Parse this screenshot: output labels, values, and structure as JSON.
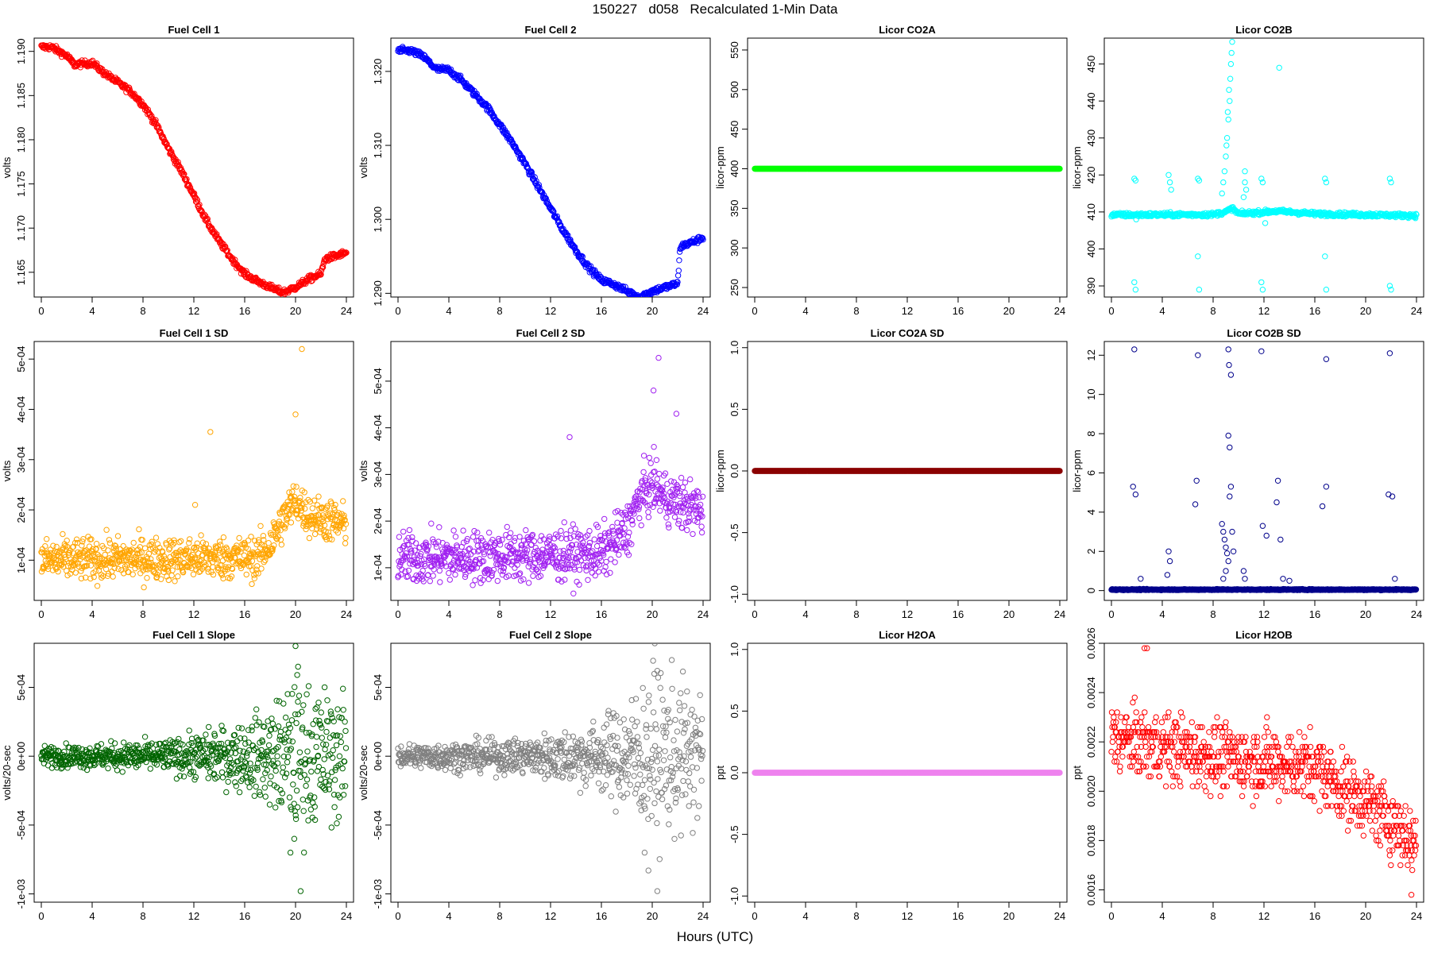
{
  "figure": {
    "title": "150227   d058   Recalculated 1-Min Data",
    "x_caption": "Hours (UTC)"
  },
  "chart_data": [
    {
      "id": "fc1",
      "type": "scatter",
      "title": "Fuel Cell 1",
      "ylabel": "volts",
      "color": "#ff0000",
      "xlim": [
        0,
        24
      ],
      "xticks": [
        0,
        4,
        8,
        12,
        16,
        20,
        24
      ],
      "ylim": [
        1.1622,
        1.1915
      ],
      "yticks": [
        1.165,
        1.17,
        1.175,
        1.18,
        1.185,
        1.19
      ],
      "yticklabels": [
        "1.165",
        "1.170",
        "1.175",
        "1.180",
        "1.185",
        "1.190"
      ],
      "trend": [
        [
          0,
          1.1905
        ],
        [
          0.8,
          1.1905
        ],
        [
          2,
          1.1895
        ],
        [
          2.6,
          1.1885
        ],
        [
          4,
          1.1887
        ],
        [
          5,
          1.1875
        ],
        [
          6,
          1.1865
        ],
        [
          7,
          1.1855
        ],
        [
          8,
          1.184
        ],
        [
          9,
          1.1818
        ],
        [
          10,
          1.179
        ],
        [
          11,
          1.1765
        ],
        [
          12,
          1.1737
        ],
        [
          13,
          1.1708
        ],
        [
          14,
          1.1685
        ],
        [
          15,
          1.1665
        ],
        [
          16,
          1.1648
        ],
        [
          17,
          1.164
        ],
        [
          18,
          1.1633
        ],
        [
          19,
          1.1627
        ],
        [
          20,
          1.1633
        ],
        [
          21,
          1.1642
        ],
        [
          22,
          1.1648
        ],
        [
          22.3,
          1.1665
        ],
        [
          24,
          1.1672
        ]
      ],
      "noise": 0.00025,
      "step": 0.04
    },
    {
      "id": "fc2",
      "type": "scatter",
      "title": "Fuel Cell 2",
      "ylabel": "volts",
      "color": "#0000ff",
      "xlim": [
        0,
        24
      ],
      "xticks": [
        0,
        4,
        8,
        12,
        16,
        20,
        24
      ],
      "ylim": [
        1.2895,
        1.3245
      ],
      "yticks": [
        1.29,
        1.3,
        1.31,
        1.32
      ],
      "yticklabels": [
        "1.290",
        "1.300",
        "1.310",
        "1.320"
      ],
      "trend": [
        [
          0,
          1.3228
        ],
        [
          1,
          1.3228
        ],
        [
          2,
          1.322
        ],
        [
          3,
          1.3203
        ],
        [
          4,
          1.3202
        ],
        [
          5,
          1.3188
        ],
        [
          6,
          1.317
        ],
        [
          7,
          1.3152
        ],
        [
          8,
          1.3128
        ],
        [
          9,
          1.3103
        ],
        [
          10,
          1.3075
        ],
        [
          11,
          1.3045
        ],
        [
          12,
          1.3015
        ],
        [
          13,
          1.2985
        ],
        [
          14,
          1.2958
        ],
        [
          15,
          1.2935
        ],
        [
          16,
          1.2918
        ],
        [
          17,
          1.2912
        ],
        [
          18,
          1.2903
        ],
        [
          19,
          1.2895
        ],
        [
          20,
          1.2903
        ],
        [
          21,
          1.2908
        ],
        [
          22,
          1.2913
        ],
        [
          22.2,
          1.2963
        ],
        [
          24,
          1.2975
        ]
      ],
      "noise": 0.0003,
      "step": 0.04
    },
    {
      "id": "co2a",
      "type": "scatter",
      "title": "Licor CO2A",
      "ylabel": "licor-ppm",
      "color": "#00ff00",
      "xlim": [
        0,
        24
      ],
      "xticks": [
        0,
        4,
        8,
        12,
        16,
        20,
        24
      ],
      "ylim": [
        238,
        565
      ],
      "yticks": [
        250,
        300,
        350,
        400,
        450,
        500,
        550
      ],
      "yticklabels": [
        "250",
        "300",
        "350",
        "400",
        "450",
        "500",
        "550"
      ],
      "trend": [
        [
          0,
          400
        ],
        [
          24,
          400
        ]
      ],
      "noise": 0,
      "step": 0.04
    },
    {
      "id": "co2b",
      "type": "scatter",
      "title": "Licor CO2B",
      "ylabel": "licor-ppm",
      "color": "#00ffff",
      "xlim": [
        0,
        24
      ],
      "xticks": [
        0,
        4,
        8,
        12,
        16,
        20,
        24
      ],
      "ylim": [
        387,
        457
      ],
      "yticks": [
        390,
        400,
        410,
        420,
        430,
        440,
        450
      ],
      "yticklabels": [
        "390",
        "400",
        "410",
        "420",
        "430",
        "440",
        "450"
      ],
      "trend": [
        [
          0,
          409.2
        ],
        [
          8,
          409.3
        ],
        [
          9,
          410
        ],
        [
          9.5,
          411
        ],
        [
          10,
          409.5
        ],
        [
          13,
          410.2
        ],
        [
          14,
          410
        ],
        [
          16,
          409.5
        ],
        [
          24,
          409
        ]
      ],
      "noise": 0.4,
      "step": 0.04,
      "extra_points": [
        [
          8.8,
          418
        ],
        [
          9.0,
          425
        ],
        [
          9.1,
          430
        ],
        [
          9.2,
          435
        ],
        [
          9.3,
          440
        ],
        [
          9.35,
          446
        ],
        [
          9.4,
          450
        ],
        [
          9.45,
          453
        ],
        [
          9.5,
          456
        ],
        [
          9.25,
          443
        ],
        [
          9.15,
          437
        ],
        [
          9.05,
          428
        ],
        [
          8.9,
          421
        ],
        [
          8.7,
          415
        ],
        [
          10.5,
          418
        ],
        [
          10.6,
          416
        ],
        [
          10.4,
          414
        ],
        [
          1.8,
          419
        ],
        [
          1.9,
          418.5
        ],
        [
          1.8,
          391
        ],
        [
          1.9,
          389
        ],
        [
          1.95,
          408
        ],
        [
          4.5,
          420
        ],
        [
          4.6,
          418
        ],
        [
          4.7,
          416
        ],
        [
          6.8,
          419
        ],
        [
          6.9,
          418.5
        ],
        [
          6.8,
          398
        ],
        [
          6.9,
          389
        ],
        [
          11.8,
          419
        ],
        [
          11.9,
          418
        ],
        [
          11.8,
          391
        ],
        [
          11.9,
          389
        ],
        [
          12.1,
          407
        ],
        [
          13.2,
          449
        ],
        [
          16.8,
          419
        ],
        [
          16.9,
          418
        ],
        [
          16.8,
          398
        ],
        [
          16.9,
          389
        ],
        [
          21.9,
          419
        ],
        [
          22.0,
          418
        ],
        [
          21.9,
          390
        ],
        [
          22.0,
          389
        ],
        [
          10.5,
          421
        ]
      ]
    },
    {
      "id": "fc1sd",
      "type": "scatter",
      "title": "Fuel Cell 1 SD",
      "ylabel": "volts",
      "color": "#ffa500",
      "xlim": [
        0,
        24
      ],
      "xticks": [
        0,
        4,
        8,
        12,
        16,
        20,
        24
      ],
      "ylim": [
        2e-05,
        0.000535
      ],
      "yticks": [
        0.0001,
        0.0002,
        0.0003,
        0.0004,
        0.0005
      ],
      "yticklabels": [
        "1e-04",
        "2e-04",
        "3e-04",
        "4e-04",
        "5e-04"
      ],
      "trend": [
        [
          0,
          0.0001
        ],
        [
          17,
          0.000105
        ],
        [
          18,
          0.00013
        ],
        [
          19,
          0.00018
        ],
        [
          20,
          0.00022
        ],
        [
          21,
          0.00019
        ],
        [
          24,
          0.00017
        ]
      ],
      "noise": 3e-05,
      "step": 0.03,
      "extra_points": [
        [
          13.3,
          0.000355
        ],
        [
          20.5,
          0.00052
        ],
        [
          20.0,
          0.00039
        ],
        [
          12.1,
          0.00021
        ]
      ]
    },
    {
      "id": "fc2sd",
      "type": "scatter",
      "title": "Fuel Cell 2 SD",
      "ylabel": "volts",
      "color": "#a020f0",
      "xlim": [
        0,
        24
      ],
      "xticks": [
        0,
        4,
        8,
        12,
        16,
        20,
        24
      ],
      "ylim": [
        3e-05,
        0.000585
      ],
      "yticks": [
        0.0001,
        0.0002,
        0.0003,
        0.0004,
        0.0005
      ],
      "yticklabels": [
        "1e-04",
        "2e-04",
        "3e-04",
        "4e-04",
        "5e-04"
      ],
      "trend": [
        [
          0,
          0.00012
        ],
        [
          16,
          0.00013
        ],
        [
          18,
          0.00018
        ],
        [
          19,
          0.00025
        ],
        [
          20,
          0.00028
        ],
        [
          21,
          0.00025
        ],
        [
          24,
          0.00022
        ]
      ],
      "noise": 4e-05,
      "step": 0.03,
      "extra_points": [
        [
          13.5,
          0.00038
        ],
        [
          20.1,
          0.00048
        ],
        [
          20.5,
          0.00055
        ],
        [
          21.9,
          0.00043
        ]
      ]
    },
    {
      "id": "co2asd",
      "type": "scatter",
      "title": "Licor CO2A SD",
      "ylabel": "licor-ppm",
      "color": "#8b0000",
      "xlim": [
        0,
        24
      ],
      "xticks": [
        0,
        4,
        8,
        12,
        16,
        20,
        24
      ],
      "ylim": [
        -1.05,
        1.05
      ],
      "yticks": [
        -1,
        -0.5,
        0,
        0.5,
        1
      ],
      "yticklabels": [
        "-1.0",
        "-0.5",
        "0.0",
        "0.5",
        "1.0"
      ],
      "trend": [
        [
          0,
          0
        ],
        [
          24,
          0
        ]
      ],
      "noise": 0,
      "step": 0.04
    },
    {
      "id": "co2bsd",
      "type": "scatter",
      "title": "Licor CO2B SD",
      "ylabel": "licor-ppm",
      "color": "#00008b",
      "xlim": [
        0,
        24
      ],
      "xticks": [
        0,
        4,
        8,
        12,
        16,
        20,
        24
      ],
      "ylim": [
        -0.5,
        12.7
      ],
      "yticks": [
        0,
        2,
        4,
        6,
        8,
        10,
        12
      ],
      "yticklabels": [
        "0",
        "2",
        "4",
        "6",
        "8",
        "10",
        "12"
      ],
      "trend": [
        [
          0,
          0.05
        ],
        [
          24,
          0.05
        ]
      ],
      "noise": 0.02,
      "step": 0.03,
      "extra_points": [
        [
          1.8,
          12.3
        ],
        [
          1.7,
          5.3
        ],
        [
          1.9,
          4.9
        ],
        [
          2.3,
          0.6
        ],
        [
          4.5,
          2.0
        ],
        [
          4.6,
          1.5
        ],
        [
          4.4,
          0.8
        ],
        [
          6.8,
          12.0
        ],
        [
          6.7,
          5.6
        ],
        [
          6.6,
          4.4
        ],
        [
          9.2,
          12.3
        ],
        [
          9.25,
          11.5
        ],
        [
          9.4,
          11.0
        ],
        [
          9.2,
          7.9
        ],
        [
          9.3,
          7.3
        ],
        [
          9.4,
          5.3
        ],
        [
          9.3,
          4.8
        ],
        [
          8.7,
          3.4
        ],
        [
          8.8,
          3.0
        ],
        [
          8.9,
          2.6
        ],
        [
          9.0,
          2.2
        ],
        [
          9.1,
          1.9
        ],
        [
          9.2,
          1.5
        ],
        [
          9.0,
          1.0
        ],
        [
          8.8,
          0.6
        ],
        [
          9.5,
          3.0
        ],
        [
          9.6,
          2.0
        ],
        [
          10.4,
          1.0
        ],
        [
          10.5,
          0.6
        ],
        [
          11.8,
          12.2
        ],
        [
          11.9,
          3.3
        ],
        [
          12.2,
          2.8
        ],
        [
          13.1,
          5.6
        ],
        [
          13.0,
          4.5
        ],
        [
          13.3,
          2.6
        ],
        [
          13.5,
          0.6
        ],
        [
          14.0,
          0.5
        ],
        [
          16.9,
          11.8
        ],
        [
          16.9,
          5.3
        ],
        [
          16.6,
          4.3
        ],
        [
          21.9,
          12.1
        ],
        [
          21.8,
          4.9
        ],
        [
          22.1,
          4.8
        ],
        [
          22.3,
          0.6
        ]
      ]
    },
    {
      "id": "fc1slope",
      "type": "scatter",
      "title": "Fuel Cell 1 Slope",
      "ylabel": "volts/20-sec",
      "color": "#006400",
      "xlim": [
        0,
        24
      ],
      "xticks": [
        0,
        4,
        8,
        12,
        16,
        20,
        24
      ],
      "ylim": [
        -0.00106,
        0.00082
      ],
      "yticks": [
        -0.001,
        -0.0005,
        0,
        0.0005
      ],
      "yticklabels": [
        "-1e-03",
        "-5e-04",
        "0e+00",
        "5e-04"
      ],
      "trend": [
        [
          0,
          0
        ],
        [
          24,
          0
        ]
      ],
      "noise": 5e-05,
      "noise_growth": [
        [
          0,
          1
        ],
        [
          10,
          1.6
        ],
        [
          16,
          3.5
        ],
        [
          18,
          5
        ],
        [
          20,
          8
        ],
        [
          24,
          6
        ]
      ],
      "step": 0.03,
      "extra_points": [
        [
          20.0,
          0.0008
        ],
        [
          20.2,
          0.00065
        ],
        [
          19.6,
          -0.0007
        ],
        [
          20.4,
          -0.00098
        ],
        [
          19.9,
          -0.0006
        ]
      ]
    },
    {
      "id": "fc2slope",
      "type": "scatter",
      "title": "Fuel Cell 2 Slope",
      "ylabel": "volts/20-sec",
      "color": "#808080",
      "xlim": [
        0,
        24
      ],
      "xticks": [
        0,
        4,
        8,
        12,
        16,
        20,
        24
      ],
      "ylim": [
        -0.00106,
        0.00082
      ],
      "yticks": [
        -0.001,
        -0.0005,
        0,
        0.0005
      ],
      "yticklabels": [
        "-1e-03",
        "-5e-04",
        "0e+00",
        "5e-04"
      ],
      "trend": [
        [
          0,
          0
        ],
        [
          24,
          0
        ]
      ],
      "noise": 6e-05,
      "noise_growth": [
        [
          0,
          1
        ],
        [
          10,
          1.5
        ],
        [
          16,
          3
        ],
        [
          18,
          5
        ],
        [
          20,
          7
        ],
        [
          24,
          6
        ]
      ],
      "step": 0.03,
      "extra_points": [
        [
          20.2,
          0.00082
        ],
        [
          20.4,
          0.00062
        ],
        [
          19.4,
          -0.0007
        ],
        [
          19.7,
          -0.00083
        ],
        [
          20.4,
          -0.00098
        ]
      ]
    },
    {
      "id": "h2oa",
      "type": "scatter",
      "title": "Licor H2OA",
      "ylabel": "ppt",
      "color": "#ee82ee",
      "xlim": [
        0,
        24
      ],
      "xticks": [
        0,
        4,
        8,
        12,
        16,
        20,
        24
      ],
      "ylim": [
        -1.05,
        1.05
      ],
      "yticks": [
        -1,
        -0.5,
        0,
        0.5,
        1
      ],
      "yticklabels": [
        "-1.0",
        "-0.5",
        "0.0",
        "0.5",
        "1.0"
      ],
      "trend": [
        [
          0,
          0
        ],
        [
          24,
          0
        ]
      ],
      "noise": 0,
      "step": 0.04
    },
    {
      "id": "h2ob",
      "type": "scatter",
      "title": "Licor H2OB",
      "ylabel": "ppt",
      "color": "#ff0000",
      "xlim": [
        0,
        24
      ],
      "xticks": [
        0,
        4,
        8,
        12,
        16,
        20,
        24
      ],
      "ylim": [
        0.00155,
        0.0026
      ],
      "yticks": [
        0.0016,
        0.0018,
        0.002,
        0.0022,
        0.0024,
        0.0026
      ],
      "yticklabels": [
        "0.0016",
        "0.0018",
        "0.0020",
        "0.0022",
        "0.0024",
        "0.0026"
      ],
      "trend": [
        [
          0,
          0.00222
        ],
        [
          8,
          0.00214
        ],
        [
          12,
          0.00212
        ],
        [
          16,
          0.0021
        ],
        [
          18,
          0.00202
        ],
        [
          20,
          0.00196
        ],
        [
          22,
          0.00188
        ],
        [
          24,
          0.00178
        ]
      ],
      "noise": 0.0001,
      "quantize": 2e-05,
      "step": 0.03,
      "extra_points": [
        [
          2.6,
          0.00258
        ],
        [
          2.8,
          0.00258
        ],
        [
          23.6,
          0.00158
        ]
      ]
    }
  ]
}
